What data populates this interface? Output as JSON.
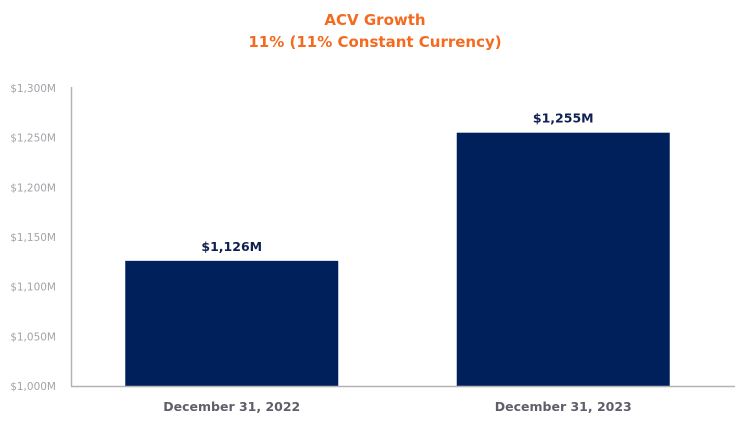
{
  "chart_data": {
    "type": "bar",
    "title": "ACV Growth",
    "subtitle": "11% (11% Constant Currency)",
    "xlabel": "",
    "ylabel": "",
    "categories": [
      "December 31, 2022",
      "December 31, 2023"
    ],
    "values": [
      1126,
      1255
    ],
    "value_unit": "$M",
    "data_labels": [
      "$1,126M",
      "$1,255M"
    ],
    "ylim": [
      1000,
      1300
    ],
    "yticks": [
      1000,
      1050,
      1100,
      1150,
      1200,
      1250,
      1300
    ],
    "ytick_labels": [
      "$1,000M",
      "$1,050M",
      "$1,100M",
      "$1,150M",
      "$1,200M",
      "$1,250M",
      "$1,300M"
    ],
    "grid": false,
    "legend": "none",
    "colors": {
      "bar": "#00205c",
      "title": "#f26b21",
      "data_label": "#0f1f4f",
      "x_tick": "#5f5f6b",
      "y_tick": "#a3a3ab",
      "axis": "#b3b3b3"
    }
  }
}
